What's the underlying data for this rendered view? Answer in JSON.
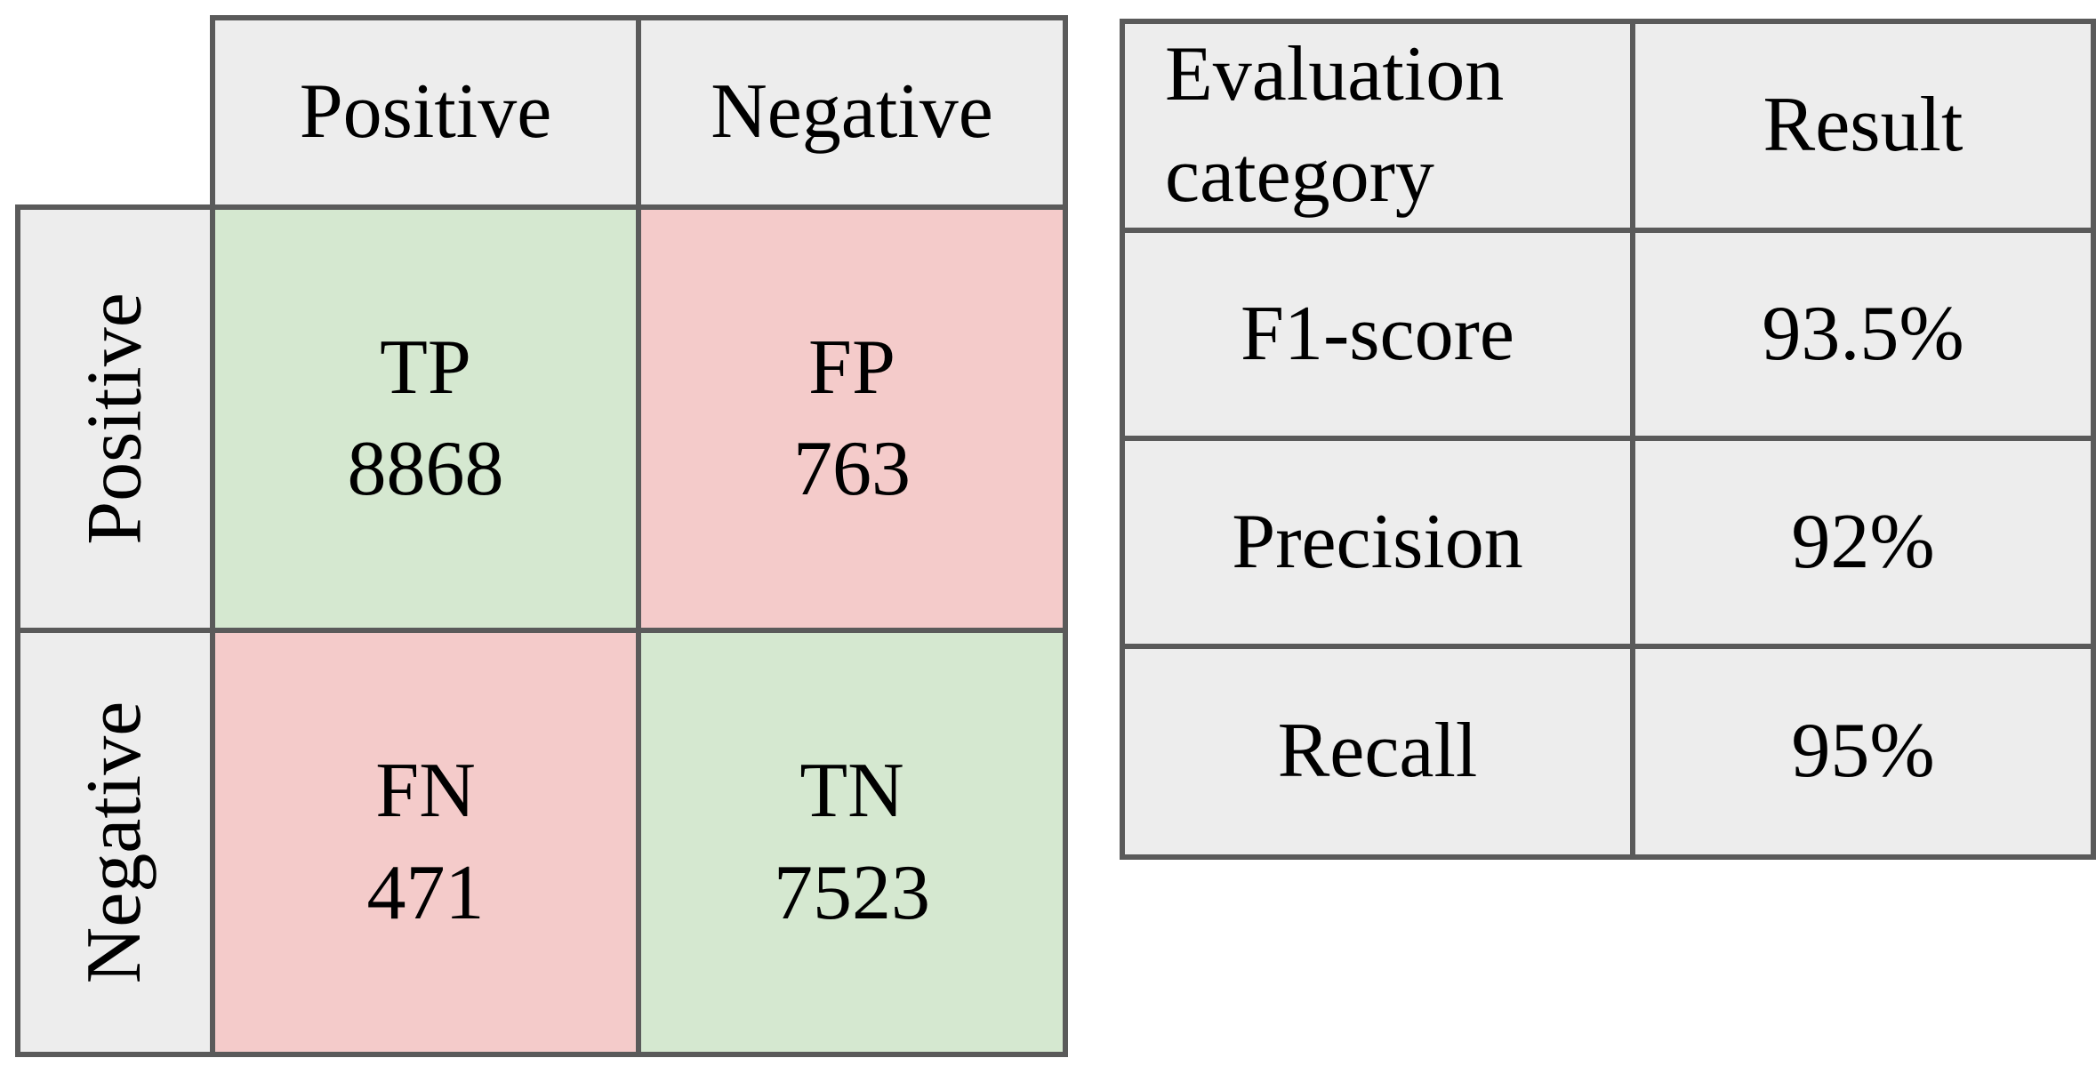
{
  "confusion_matrix": {
    "predicted_col_headers": [
      "Positive",
      "Negative"
    ],
    "actual_row_headers": [
      "Positive",
      "Negative"
    ],
    "cells": [
      {
        "abbr": "TP",
        "value": "8868",
        "type": "correct"
      },
      {
        "abbr": "FP",
        "value": "763",
        "type": "incorrect"
      },
      {
        "abbr": "FN",
        "value": "471",
        "type": "incorrect"
      },
      {
        "abbr": "TN",
        "value": "7523",
        "type": "correct"
      }
    ]
  },
  "evaluation_table": {
    "category_header": "Evaluation category",
    "result_header": "Result",
    "rows": [
      {
        "category": "F1-score",
        "result": "93.5%"
      },
      {
        "category": "Precision",
        "result": "92%"
      },
      {
        "category": "Recall",
        "result": "95%"
      }
    ]
  },
  "colors": {
    "correct_cell_bg": "#d5e8d0",
    "incorrect_cell_bg": "#f4cbca",
    "header_cell_bg": "#ededed",
    "border": "#5a5a5a",
    "text": "#000000",
    "page_bg": "#ffffff"
  },
  "chart_data": [
    {
      "type": "table",
      "title": "Confusion matrix",
      "columns": [
        "",
        "Positive",
        "Negative"
      ],
      "rows": [
        [
          "Positive",
          "TP 8868",
          "FP 763"
        ],
        [
          "Negative",
          "FN 471",
          "TN 7523"
        ]
      ],
      "cell_semantics": {
        "TP": 8868,
        "FP": 763,
        "FN": 471,
        "TN": 7523
      }
    },
    {
      "type": "table",
      "title": "Evaluation results",
      "columns": [
        "Evaluation category",
        "Result"
      ],
      "rows": [
        [
          "F1-score",
          "93.5%"
        ],
        [
          "Precision",
          "92%"
        ],
        [
          "Recall",
          "95%"
        ]
      ]
    }
  ]
}
